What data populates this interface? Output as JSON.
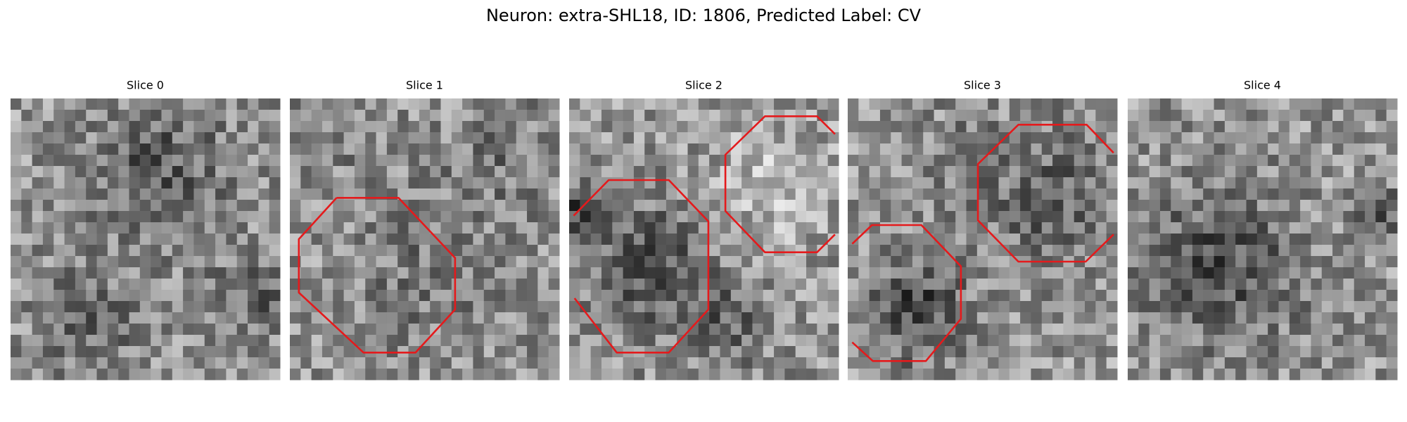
{
  "title": "Neuron: extra-SHL18, ID: 1806, Predicted Label: CV",
  "panels": [
    {
      "title": "Slice 0"
    },
    {
      "title": "Slice 1"
    },
    {
      "title": "Slice 2"
    },
    {
      "title": "Slice 3"
    },
    {
      "title": "Slice 4"
    }
  ]
}
